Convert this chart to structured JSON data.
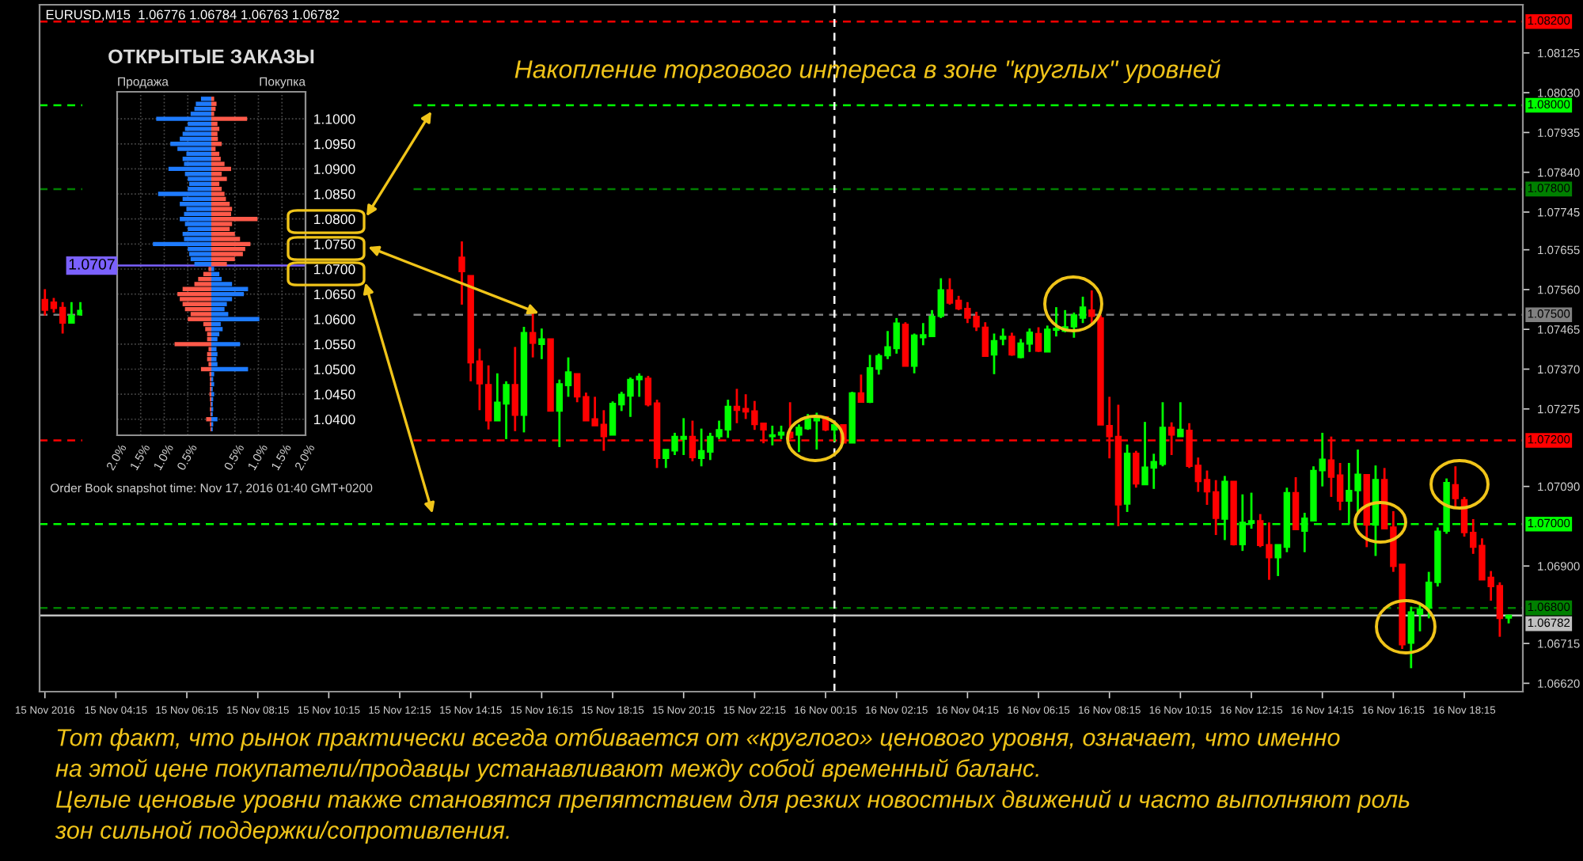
{
  "chart_data": [
    {
      "type": "candlestick",
      "title": "EURUSD,M15  1.06776 1.06784 1.06763 1.06782",
      "subtitle": "Накопление торгового интереса в зоне \"круглых\" уровней",
      "x": [
        "2016-11-15T02:15",
        "2016-11-15T02:30",
        "2016-11-15T02:45",
        "2016-11-15T03:00",
        "2016-11-15T03:15",
        "2016-11-15T14:00",
        "2016-11-15T14:15",
        "2016-11-15T14:30",
        "2016-11-15T14:45",
        "2016-11-15T15:00",
        "2016-11-15T15:15",
        "2016-11-15T15:30",
        "2016-11-15T15:45",
        "2016-11-15T16:00",
        "2016-11-15T16:15",
        "2016-11-15T16:30",
        "2016-11-15T16:45",
        "2016-11-15T17:00",
        "2016-11-15T17:15",
        "2016-11-15T17:30",
        "2016-11-15T17:45",
        "2016-11-15T18:00",
        "2016-11-15T18:15",
        "2016-11-15T18:30",
        "2016-11-15T18:45",
        "2016-11-15T19:00",
        "2016-11-15T19:15",
        "2016-11-15T19:30",
        "2016-11-15T19:45",
        "2016-11-15T20:00",
        "2016-11-15T20:15",
        "2016-11-15T20:30",
        "2016-11-15T20:45",
        "2016-11-15T21:00",
        "2016-11-15T21:15",
        "2016-11-15T21:30",
        "2016-11-15T21:45",
        "2016-11-15T22:00",
        "2016-11-15T22:15",
        "2016-11-15T22:30",
        "2016-11-15T22:45",
        "2016-11-15T23:00",
        "2016-11-15T23:15",
        "2016-11-15T23:30",
        "2016-11-15T23:45",
        "2016-11-16T00:00",
        "2016-11-16T00:15",
        "2016-11-16T00:30",
        "2016-11-16T00:45",
        "2016-11-16T01:00",
        "2016-11-16T01:15",
        "2016-11-16T01:30",
        "2016-11-16T01:45",
        "2016-11-16T02:00",
        "2016-11-16T02:15",
        "2016-11-16T02:30",
        "2016-11-16T02:45",
        "2016-11-16T03:00",
        "2016-11-16T03:15",
        "2016-11-16T03:30",
        "2016-11-16T03:45",
        "2016-11-16T04:00",
        "2016-11-16T04:15",
        "2016-11-16T04:30",
        "2016-11-16T04:45",
        "2016-11-16T05:00",
        "2016-11-16T05:15",
        "2016-11-16T05:30",
        "2016-11-16T05:45",
        "2016-11-16T06:00",
        "2016-11-16T06:15",
        "2016-11-16T06:30",
        "2016-11-16T06:45",
        "2016-11-16T07:00",
        "2016-11-16T07:15",
        "2016-11-16T07:30",
        "2016-11-16T07:45",
        "2016-11-16T08:00",
        "2016-11-16T08:15",
        "2016-11-16T08:30",
        "2016-11-16T08:45",
        "2016-11-16T09:00",
        "2016-11-16T09:15",
        "2016-11-16T09:30",
        "2016-11-16T09:45",
        "2016-11-16T10:00",
        "2016-11-16T10:15",
        "2016-11-16T10:30",
        "2016-11-16T10:45",
        "2016-11-16T11:00",
        "2016-11-16T11:15",
        "2016-11-16T11:30",
        "2016-11-16T11:45",
        "2016-11-16T12:00",
        "2016-11-16T12:15",
        "2016-11-16T12:30",
        "2016-11-16T12:45",
        "2016-11-16T13:00",
        "2016-11-16T13:15",
        "2016-11-16T13:30",
        "2016-11-16T13:45",
        "2016-11-16T14:00",
        "2016-11-16T14:15",
        "2016-11-16T14:30",
        "2016-11-16T14:45",
        "2016-11-16T15:00",
        "2016-11-16T15:15",
        "2016-11-16T15:30",
        "2016-11-16T15:45",
        "2016-11-16T16:00",
        "2016-11-16T16:15",
        "2016-11-16T16:30",
        "2016-11-16T16:45",
        "2016-11-16T17:00",
        "2016-11-16T17:15",
        "2016-11-16T17:30",
        "2016-11-16T17:45",
        "2016-11-16T18:00",
        "2016-11-16T18:15",
        "2016-11-16T18:30",
        "2016-11-16T18:45",
        "2016-11-16T19:00",
        "2016-11-16T19:15",
        "2016-11-16T19:30"
      ],
      "ohlc": [
        [
          1.07536,
          1.07561,
          1.07498,
          1.07511
        ],
        [
          1.0753,
          1.0754,
          1.07505,
          1.07515
        ],
        [
          1.07517,
          1.0753,
          1.07455,
          1.0748
        ],
        [
          1.0748,
          1.0753,
          1.0748,
          1.07498
        ],
        [
          1.075,
          1.0753,
          1.07498,
          1.0751
        ],
        [
          1.07637,
          1.07675,
          1.07524,
          1.07603
        ],
        [
          1.07593,
          1.07593,
          1.07341,
          1.07385
        ],
        [
          1.07389,
          1.07419,
          1.07272,
          1.07335
        ],
        [
          1.07333,
          1.07379,
          1.07226,
          1.07247
        ],
        [
          1.07247,
          1.0736,
          1.07247,
          1.07291
        ],
        [
          1.07287,
          1.07341,
          1.07203,
          1.07333
        ],
        [
          1.07333,
          1.07423,
          1.07222,
          1.0726
        ],
        [
          1.0726,
          1.07471,
          1.07219,
          1.07457
        ],
        [
          1.07457,
          1.07505,
          1.07398,
          1.07432
        ],
        [
          1.07429,
          1.07467,
          1.07394,
          1.07442
        ],
        [
          1.07442,
          1.07442,
          1.0727,
          1.0727
        ],
        [
          1.0727,
          1.07345,
          1.07184,
          1.07335
        ],
        [
          1.07331,
          1.07398,
          1.07304,
          1.07363
        ],
        [
          1.07359,
          1.07359,
          1.07291,
          1.07304
        ],
        [
          1.07304,
          1.07314,
          1.07247,
          1.07247
        ],
        [
          1.07251,
          1.07304,
          1.07235,
          1.07235
        ],
        [
          1.07238,
          1.07272,
          1.07175,
          1.07209
        ],
        [
          1.07213,
          1.07293,
          1.07213,
          1.07288
        ],
        [
          1.07285,
          1.07316,
          1.0727,
          1.0731
        ],
        [
          1.07306,
          1.0735,
          1.07256,
          1.07345
        ],
        [
          1.07345,
          1.0736,
          1.07304,
          1.07353
        ],
        [
          1.07348,
          1.07354,
          1.07281,
          1.07285
        ],
        [
          1.07289,
          1.07297,
          1.07134,
          1.07157
        ],
        [
          1.07157,
          1.07178,
          1.07134,
          1.07178
        ],
        [
          1.07175,
          1.07218,
          1.07165,
          1.07209
        ],
        [
          1.07203,
          1.07253,
          1.07165,
          1.07209
        ],
        [
          1.07209,
          1.07247,
          1.0715,
          1.07159
        ],
        [
          1.07157,
          1.07228,
          1.07138,
          1.07175
        ],
        [
          1.07172,
          1.07218,
          1.07153,
          1.07209
        ],
        [
          1.07209,
          1.07247,
          1.07203,
          1.07225
        ],
        [
          1.07225,
          1.07297,
          1.07206,
          1.07281
        ],
        [
          1.07281,
          1.07323,
          1.07241,
          1.07272
        ],
        [
          1.07276,
          1.0731,
          1.07251,
          1.07268
        ],
        [
          1.0727,
          1.07294,
          1.07225,
          1.07238
        ],
        [
          1.07241,
          1.07241,
          1.07193,
          1.07225
        ],
        [
          1.07209,
          1.07235,
          1.07188,
          1.07213
        ],
        [
          1.07213,
          1.07235,
          1.07203,
          1.07219
        ],
        [
          1.07219,
          1.07291,
          1.07203,
          1.07206
        ],
        [
          1.07213,
          1.07238,
          1.07172,
          1.07231
        ],
        [
          1.07228,
          1.07263,
          1.07225,
          1.07251
        ],
        [
          1.07247,
          1.07266,
          1.07178,
          1.07256
        ],
        [
          1.07256,
          1.07256,
          1.07222,
          1.07225
        ],
        [
          1.07225,
          1.07241,
          1.07197,
          1.07237
        ],
        [
          1.07237,
          1.07237,
          1.07194,
          1.07194
        ],
        [
          1.07194,
          1.07316,
          1.07194,
          1.07313
        ],
        [
          1.07313,
          1.07357,
          1.07291,
          1.07291
        ],
        [
          1.07291,
          1.07404,
          1.07289,
          1.07373
        ],
        [
          1.0737,
          1.07407,
          1.07357,
          1.07402
        ],
        [
          1.07402,
          1.07461,
          1.07394,
          1.07423
        ],
        [
          1.07419,
          1.07492,
          1.07407,
          1.0748
        ],
        [
          1.07477,
          1.07482,
          1.07377,
          1.07377
        ],
        [
          1.07377,
          1.07455,
          1.0736,
          1.07451
        ],
        [
          1.07445,
          1.0748,
          1.07427,
          1.07452
        ],
        [
          1.07448,
          1.07511,
          1.07448,
          1.07496
        ],
        [
          1.07496,
          1.07587,
          1.07492,
          1.07559
        ],
        [
          1.07559,
          1.07587,
          1.07524,
          1.07528
        ],
        [
          1.07534,
          1.07545,
          1.07511,
          1.07514
        ],
        [
          1.07515,
          1.0753,
          1.0748,
          1.07492
        ],
        [
          1.07496,
          1.07507,
          1.07461,
          1.07471
        ],
        [
          1.0747,
          1.07482,
          1.07401,
          1.07401
        ],
        [
          1.07404,
          1.07455,
          1.07358,
          1.07438
        ],
        [
          1.07442,
          1.07467,
          1.07427,
          1.07448
        ],
        [
          1.07448,
          1.07457,
          1.07402,
          1.07404
        ],
        [
          1.07398,
          1.07442,
          1.07396,
          1.07432
        ],
        [
          1.0743,
          1.07467,
          1.07411,
          1.07458
        ],
        [
          1.07455,
          1.0747,
          1.07411,
          1.07413
        ],
        [
          1.07411,
          1.07474,
          1.07411,
          1.07465
        ],
        [
          1.07463,
          1.07518,
          1.07448,
          1.07467
        ],
        [
          1.07461,
          1.07511,
          1.07458,
          1.07471
        ],
        [
          1.07471,
          1.07505,
          1.07445,
          1.07499
        ],
        [
          1.07492,
          1.07543,
          1.0748,
          1.07518
        ],
        [
          1.07511,
          1.07558,
          1.07474,
          1.07496
        ],
        [
          1.07492,
          1.07499,
          1.07237,
          1.07237
        ],
        [
          1.07235,
          1.07304,
          1.07157,
          1.07209
        ],
        [
          1.07209,
          1.07285,
          1.06995,
          1.07046
        ],
        [
          1.07048,
          1.0719,
          1.07029,
          1.07169
        ],
        [
          1.07169,
          1.07175,
          1.07087,
          1.07096
        ],
        [
          1.07094,
          1.07244,
          1.07094,
          1.07136
        ],
        [
          1.07134,
          1.07168,
          1.07084,
          1.07149
        ],
        [
          1.07143,
          1.07291,
          1.07138,
          1.07231
        ],
        [
          1.07231,
          1.07243,
          1.07165,
          1.07213
        ],
        [
          1.07209,
          1.07291,
          1.07209,
          1.07226
        ],
        [
          1.07224,
          1.07241,
          1.07134,
          1.07138
        ],
        [
          1.0714,
          1.07159,
          1.07077,
          1.07102
        ],
        [
          1.07106,
          1.07128,
          1.07046,
          1.07077
        ],
        [
          1.07077,
          1.07105,
          1.06974,
          1.07014
        ],
        [
          1.07012,
          1.07115,
          1.06962,
          1.07102
        ],
        [
          1.07102,
          1.07102,
          1.06949,
          1.06951
        ],
        [
          1.06951,
          1.07071,
          1.06936,
          1.07004
        ],
        [
          1.07002,
          1.07075,
          1.06989,
          1.07008
        ],
        [
          1.07008,
          1.07024,
          1.06945,
          1.06949
        ],
        [
          1.06951,
          1.07004,
          1.06867,
          1.0692
        ],
        [
          1.0692,
          1.06951,
          1.06876,
          1.06951
        ],
        [
          1.06945,
          1.07087,
          1.06933,
          1.07075
        ],
        [
          1.07075,
          1.07112,
          1.06987,
          1.06987
        ],
        [
          1.06983,
          1.07027,
          1.06933,
          1.07014
        ],
        [
          1.07008,
          1.07138,
          1.07008,
          1.07128
        ],
        [
          1.07128,
          1.07218,
          1.0709,
          1.07155
        ],
        [
          1.07153,
          1.07209,
          1.07065,
          1.07112
        ],
        [
          1.07117,
          1.07146,
          1.07033,
          1.07055
        ],
        [
          1.07055,
          1.07146,
          1.07,
          1.0708
        ],
        [
          1.0708,
          1.07178,
          1.07027,
          1.07119
        ],
        [
          1.07118,
          1.07118,
          1.06945,
          1.06998
        ],
        [
          1.06998,
          1.0714,
          1.06924,
          1.07106
        ],
        [
          1.07106,
          1.07134,
          1.06989,
          1.06989
        ],
        [
          1.06993,
          1.07031,
          1.06886,
          1.06899
        ],
        [
          1.06904,
          1.06904,
          1.06702,
          1.06712
        ],
        [
          1.06716,
          1.06803,
          1.06656,
          1.0679
        ],
        [
          1.06785,
          1.06807,
          1.06744,
          1.06797
        ],
        [
          1.068,
          1.06886,
          1.06775,
          1.06861
        ],
        [
          1.06861,
          1.06992,
          1.06851,
          1.06983
        ],
        [
          1.06983,
          1.07109,
          1.06977,
          1.07099
        ],
        [
          1.07094,
          1.07138,
          1.0704,
          1.07061
        ],
        [
          1.07058,
          1.07065,
          1.0697,
          1.0698
        ],
        [
          1.0698,
          1.07012,
          1.06929,
          1.06945
        ],
        [
          1.06949,
          1.06966,
          1.06867,
          1.06867
        ],
        [
          1.06873,
          1.06888,
          1.06817,
          1.06851
        ],
        [
          1.06853,
          1.06861,
          1.06731,
          1.06775
        ],
        [
          1.06776,
          1.06784,
          1.06763,
          1.06782
        ]
      ],
      "colors": [
        "#ff0000",
        "#ff0000",
        "#ff0000",
        "#00ff00",
        "#00ff00",
        "#ff0000",
        "#ff0000",
        "#ff0000",
        "#ff0000",
        "#00ff00",
        "#00ff00",
        "#ff0000",
        "#00ff00",
        "#ff0000",
        "#00ff00",
        "#ff0000",
        "#00ff00",
        "#00ff00",
        "#ff0000",
        "#ff0000",
        "#ff0000",
        "#ff0000",
        "#00ff00",
        "#00ff00",
        "#00ff00",
        "#00ff00",
        "#ff0000",
        "#ff0000",
        "#00ff00",
        "#00ff00",
        "#00ff00",
        "#ff0000",
        "#00ff00",
        "#00ff00",
        "#00ff00",
        "#00ff00",
        "#ff0000",
        "#ff0000",
        "#ff0000",
        "#ff0000",
        "#00ff00",
        "#00ff00",
        "#ff0000",
        "#00ff00",
        "#00ff00",
        "#00ff00",
        "#ff0000",
        "#00ff00",
        "#ff0000",
        "#00ff00",
        "#ff0000",
        "#00ff00",
        "#00ff00",
        "#00ff00",
        "#00ff00",
        "#ff0000",
        "#00ff00",
        "#00ff00",
        "#00ff00",
        "#00ff00",
        "#ff0000",
        "#ff0000",
        "#ff0000",
        "#ff0000",
        "#ff0000",
        "#00ff00",
        "#00ff00",
        "#ff0000",
        "#00ff00",
        "#00ff00",
        "#ff0000",
        "#00ff00",
        "#00ff00",
        "#00ff00",
        "#00ff00",
        "#00ff00",
        "#ff0000",
        "#ff0000",
        "#ff0000",
        "#ff0000",
        "#00ff00",
        "#ff0000",
        "#00ff00",
        "#00ff00",
        "#00ff00",
        "#ff0000",
        "#00ff00",
        "#ff0000",
        "#ff0000",
        "#ff0000",
        "#ff0000",
        "#00ff00",
        "#ff0000",
        "#00ff00",
        "#00ff00",
        "#ff0000",
        "#ff0000",
        "#00ff00",
        "#00ff00",
        "#ff0000",
        "#00ff00",
        "#00ff00",
        "#00ff00",
        "#ff0000",
        "#ff0000",
        "#00ff00",
        "#00ff00",
        "#ff0000",
        "#00ff00",
        "#ff0000",
        "#ff0000",
        "#ff0000",
        "#00ff00",
        "#00ff00",
        "#00ff00",
        "#00ff00",
        "#00ff00",
        "#ff0000",
        "#ff0000",
        "#ff0000",
        "#ff0000",
        "#ff0000",
        "#ff0000",
        "#00ff00"
      ],
      "xlim": [
        "2016-11-15T02:06",
        "2016-11-16T19:54"
      ],
      "xticks": [
        {
          "value": "2016-11-15T02:15",
          "label": "15 Nov 2016"
        },
        {
          "value": "2016-11-15T04:15",
          "label": "15 Nov 04:15"
        },
        {
          "value": "2016-11-15T06:15",
          "label": "15 Nov 06:15"
        },
        {
          "value": "2016-11-15T08:15",
          "label": "15 Nov 08:15"
        },
        {
          "value": "2016-11-15T10:15",
          "label": "15 Nov 10:15"
        },
        {
          "value": "2016-11-15T12:15",
          "label": "15 Nov 12:15"
        },
        {
          "value": "2016-11-15T14:15",
          "label": "15 Nov 14:15"
        },
        {
          "value": "2016-11-15T16:15",
          "label": "15 Nov 16:15"
        },
        {
          "value": "2016-11-15T18:15",
          "label": "15 Nov 18:15"
        },
        {
          "value": "2016-11-15T20:15",
          "label": "15 Nov 20:15"
        },
        {
          "value": "2016-11-15T22:15",
          "label": "15 Nov 22:15"
        },
        {
          "value": "2016-11-16T00:15",
          "label": "16 Nov 00:15"
        },
        {
          "value": "2016-11-16T02:15",
          "label": "16 Nov 02:15"
        },
        {
          "value": "2016-11-16T04:15",
          "label": "16 Nov 04:15"
        },
        {
          "value": "2016-11-16T06:15",
          "label": "16 Nov 06:15"
        },
        {
          "value": "2016-11-16T08:15",
          "label": "16 Nov 08:15"
        },
        {
          "value": "2016-11-16T10:15",
          "label": "16 Nov 10:15"
        },
        {
          "value": "2016-11-16T12:15",
          "label": "16 Nov 12:15"
        },
        {
          "value": "2016-11-16T14:15",
          "label": "16 Nov 14:15"
        },
        {
          "value": "2016-11-16T16:15",
          "label": "16 Nov 16:15"
        },
        {
          "value": "2016-11-16T18:15",
          "label": "16 Nov 18:15"
        }
      ],
      "ylim": [
        1.066,
        1.0824
      ],
      "yticks": [
        {
          "value": 1.0662,
          "label": "1.06620"
        },
        1.06715,
        {
          "value": 1.069,
          "label": "1.06900"
        },
        {
          "value": 1.0709,
          "label": "1.07090"
        },
        1.07275,
        {
          "value": 1.0737,
          "label": "1.07370"
        },
        1.07465,
        {
          "value": 1.0756,
          "label": "1.07560"
        },
        1.07655,
        1.07745,
        {
          "value": 1.0784,
          "label": "1.07840"
        },
        1.07935,
        {
          "value": 1.0803,
          "label": "1.08030"
        },
        1.08125
      ],
      "ref_lines": [
        {
          "axis": "y",
          "value": 1.082,
          "label": "1.08200",
          "color": "#ff0000",
          "line_style": "dashed"
        },
        {
          "axis": "y",
          "value": 1.08,
          "label": "1.08000",
          "color": "#00ff00",
          "line_style": "dashed"
        },
        {
          "axis": "y",
          "value": 1.078,
          "label": "1.07800",
          "color": "#008000",
          "line_style": "dashed"
        },
        {
          "axis": "y",
          "value": 1.075,
          "label": "1.07500",
          "color": "#808080",
          "line_style": "dashed"
        },
        {
          "axis": "y",
          "value": 1.072,
          "label": "1.07200",
          "color": "#ff0000",
          "line_style": "dashed"
        },
        {
          "axis": "y",
          "value": 1.07,
          "label": "1.07000",
          "color": "#00ff00",
          "line_style": "dashed"
        },
        {
          "axis": "y",
          "value": 1.068,
          "label": "1.06800",
          "color": "#008000",
          "line_style": "dashed"
        },
        {
          "axis": "y",
          "value": 1.06782,
          "label": "1.06782",
          "color": "#c0c0c0",
          "line_style": "solid"
        },
        {
          "axis": "x",
          "value": "2016-11-16T00:30",
          "color": "#ffffff",
          "line_style": "dashed"
        }
      ],
      "annotations": [
        "Тот факт, что рынок практически всегда отбивается от «круглого» ценового уровня, означает, что именно\nна этой цене покупатели/продавцы устанавливают между собой временный баланс.\nЦелые ценовые уровни также становятся препятствием для резких новостных движений и часто выполняют роль\nзон сильной поддержки/сопротивления."
      ]
    },
    {
      "type": "bar",
      "orientation": "horizontal",
      "stacked": true,
      "title": "ОТКРЫТЫЕ ЗАКАЗЫ",
      "x": [
        1.104,
        1.103,
        1.102,
        1.101,
        1.1,
        1.099,
        1.098,
        1.097,
        1.096,
        1.095,
        1.094,
        1.093,
        1.092,
        1.091,
        1.09,
        1.089,
        1.088,
        1.087,
        1.086,
        1.085,
        1.084,
        1.083,
        1.082,
        1.081,
        1.08,
        1.079,
        1.078,
        1.077,
        1.076,
        1.075,
        1.074,
        1.073,
        1.072,
        1.071,
        1.07,
        1.069,
        1.068,
        1.067,
        1.066,
        1.065,
        1.064,
        1.063,
        1.062,
        1.061,
        1.06,
        1.059,
        1.058,
        1.057,
        1.056,
        1.055,
        1.054,
        1.053,
        1.052,
        1.051,
        1.05,
        1.049,
        1.048,
        1.047,
        1.046,
        1.045,
        1.044,
        1.043,
        1.042,
        1.041,
        1.04,
        1.039,
        1.038
      ],
      "series": [
        {
          "values": [
            -0.22,
            -0.33,
            -0.36,
            -0.44,
            -1.17,
            -0.5,
            -0.56,
            -0.61,
            -0.67,
            -0.87,
            -0.72,
            -0.53,
            -0.61,
            -0.58,
            -0.91,
            -0.56,
            -0.5,
            -0.47,
            -0.5,
            -1.13,
            -0.61,
            -0.67,
            -0.53,
            -0.58,
            -0.67,
            -0.56,
            -0.5,
            -0.61,
            -0.58,
            -1.24,
            -0.5,
            -0.47,
            -0.44,
            -0.36,
            -0.06,
            -0.17,
            -0.28,
            -0.36,
            -0.61,
            -0.72,
            -0.67,
            -0.61,
            -0.56,
            -0.44,
            -0.5,
            -0.17,
            -0.13,
            -0.09,
            -0.09,
            -0.78,
            -0.06,
            -0.09,
            -0.09,
            -0.06,
            -0.22,
            -0.04,
            -0.03,
            -0.03,
            -0.03,
            -0.04,
            -0.03,
            -0.02,
            -0.03,
            -0.02,
            -0.11,
            -0.03,
            -0.02
          ],
          "colors": [
            "#1e7bff",
            "#1e7bff",
            "#1e7bff",
            "#1e7bff",
            "#1e7bff",
            "#1e7bff",
            "#1e7bff",
            "#1e7bff",
            "#1e7bff",
            "#1e7bff",
            "#1e7bff",
            "#1e7bff",
            "#1e7bff",
            "#1e7bff",
            "#1e7bff",
            "#1e7bff",
            "#1e7bff",
            "#1e7bff",
            "#1e7bff",
            "#1e7bff",
            "#1e7bff",
            "#1e7bff",
            "#1e7bff",
            "#1e7bff",
            "#1e7bff",
            "#1e7bff",
            "#1e7bff",
            "#1e7bff",
            "#1e7bff",
            "#1e7bff",
            "#1e7bff",
            "#1e7bff",
            "#1e7bff",
            "#1e7bff",
            "#ff5a4a",
            "#ff5a4a",
            "#ff5a4a",
            "#ff5a4a",
            "#ff5a4a",
            "#ff5a4a",
            "#ff5a4a",
            "#ff5a4a",
            "#ff5a4a",
            "#ff5a4a",
            "#ff5a4a",
            "#ff5a4a",
            "#ff5a4a",
            "#ff5a4a",
            "#ff5a4a",
            "#ff5a4a",
            "#ff5a4a",
            "#ff5a4a",
            "#ff5a4a",
            "#ff5a4a",
            "#ff5a4a",
            "#ff5a4a",
            "#ff5a4a",
            "#ff5a4a",
            "#ff5a4a",
            "#ff5a4a",
            "#ff5a4a",
            "#ff5a4a",
            "#ff5a4a",
            "#ff5a4a",
            "#ff5a4a",
            "#ff5a4a",
            "#ff5a4a"
          ]
        },
        {
          "values": [
            0.06,
            0.11,
            0.09,
            0.06,
            0.76,
            0.13,
            0.17,
            0.13,
            0.14,
            0.22,
            0.09,
            0.17,
            0.2,
            0.28,
            0.42,
            0.22,
            0.33,
            0.17,
            0.22,
            0.28,
            0.31,
            0.39,
            0.44,
            0.42,
            0.98,
            0.44,
            0.39,
            0.5,
            0.61,
            0.83,
            0.72,
            0.67,
            0.5,
            0.33,
            0.06,
            0.17,
            0.22,
            0.44,
            0.78,
            0.69,
            0.44,
            0.33,
            0.28,
            0.36,
            1.02,
            0.2,
            0.24,
            0.17,
            0.13,
            0.61,
            0.11,
            0.13,
            0.11,
            0.13,
            0.78,
            0.06,
            0.04,
            0.06,
            0.03,
            0.06,
            0.04,
            0.03,
            0.04,
            0.03,
            0.13,
            0.04,
            0.03
          ],
          "colors": [
            "#ff5a4a",
            "#ff5a4a",
            "#ff5a4a",
            "#ff5a4a",
            "#ff5a4a",
            "#ff5a4a",
            "#ff5a4a",
            "#ff5a4a",
            "#ff5a4a",
            "#ff5a4a",
            "#ff5a4a",
            "#ff5a4a",
            "#ff5a4a",
            "#ff5a4a",
            "#ff5a4a",
            "#ff5a4a",
            "#ff5a4a",
            "#ff5a4a",
            "#ff5a4a",
            "#ff5a4a",
            "#ff5a4a",
            "#ff5a4a",
            "#ff5a4a",
            "#ff5a4a",
            "#ff5a4a",
            "#ff5a4a",
            "#ff5a4a",
            "#ff5a4a",
            "#ff5a4a",
            "#ff5a4a",
            "#ff5a4a",
            "#ff5a4a",
            "#ff5a4a",
            "#ff5a4a",
            "#1e7bff",
            "#1e7bff",
            "#1e7bff",
            "#1e7bff",
            "#1e7bff",
            "#1e7bff",
            "#1e7bff",
            "#1e7bff",
            "#1e7bff",
            "#1e7bff",
            "#1e7bff",
            "#1e7bff",
            "#1e7bff",
            "#1e7bff",
            "#1e7bff",
            "#1e7bff",
            "#1e7bff",
            "#1e7bff",
            "#1e7bff",
            "#1e7bff",
            "#1e7bff",
            "#1e7bff",
            "#1e7bff",
            "#1e7bff",
            "#1e7bff",
            "#1e7bff",
            "#1e7bff",
            "#1e7bff",
            "#1e7bff",
            "#1e7bff",
            "#1e7bff",
            "#1e7bff",
            "#1e7bff"
          ]
        }
      ],
      "xlim": [
        -2.0,
        2.0
      ],
      "xticks": [
        {
          "value": -2.0,
          "label": "2.0%"
        },
        {
          "value": -1.5,
          "label": "1.5%"
        },
        {
          "value": -1.0,
          "label": "1.0%"
        },
        {
          "value": -0.5,
          "label": "0.5%"
        },
        {
          "value": 0.5,
          "label": "0.5%"
        },
        {
          "value": 1.0,
          "label": "1.0%"
        },
        {
          "value": 1.5,
          "label": "1.5%"
        },
        {
          "value": 2.0,
          "label": "2.0%"
        }
      ],
      "ylim": [
        1.0368,
        1.1054
      ],
      "yticks": [
        {
          "value": 1.1,
          "label": "1.1000"
        },
        {
          "value": 1.095,
          "label": "1.0950"
        },
        {
          "value": 1.09,
          "label": "1.0900"
        },
        {
          "value": 1.085,
          "label": "1.0850"
        },
        {
          "value": 1.08,
          "label": "1.0800"
        },
        {
          "value": 1.075,
          "label": "1.0750"
        },
        {
          "value": 1.07,
          "label": "1.0700"
        },
        {
          "value": 1.065,
          "label": "1.0650"
        },
        {
          "value": 1.06,
          "label": "1.0600"
        },
        {
          "value": 1.055,
          "label": "1.0550"
        },
        {
          "value": 1.05,
          "label": "1.0500"
        },
        {
          "value": 1.045,
          "label": "1.0450"
        },
        {
          "value": 1.04,
          "label": "1.0400"
        }
      ],
      "grid": true,
      "ref_lines": [
        {
          "axis": "y",
          "value": 1.0707,
          "label": "1.0707",
          "color": "#7b61ff",
          "line_style": "solid"
        }
      ],
      "annotations": [
        "Продажа",
        "Покупка",
        "Order Book snapshot time: Nov 17, 2016 01:40 GMT+0200"
      ]
    }
  ]
}
